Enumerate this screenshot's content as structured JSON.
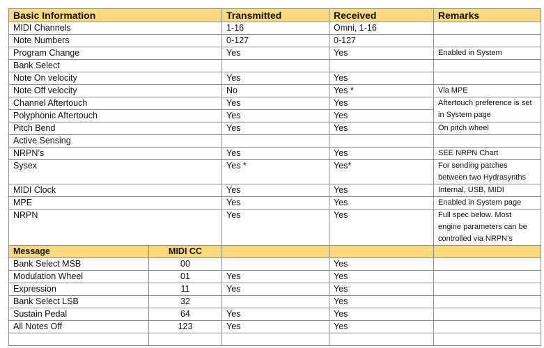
{
  "basic": {
    "headers": [
      "Basic Information",
      "Transmitted",
      "Received",
      "Remarks"
    ],
    "rows": [
      {
        "label": "MIDI Channels",
        "tx": "1-16",
        "rx": "Omni, 1-16",
        "remarks": ""
      },
      {
        "label": "Note Numbers",
        "tx": "0-127",
        "rx": "0-127",
        "remarks": ""
      },
      {
        "label": "Program Change",
        "tx": "Yes",
        "rx": "Yes",
        "remarks": "Enabled in System"
      },
      {
        "label": "Bank Select",
        "tx": "",
        "rx": "",
        "remarks": ""
      },
      {
        "label": "Note On velocity",
        "tx": "Yes",
        "rx": "Yes",
        "remarks": ""
      },
      {
        "label": "Note Off velocity",
        "tx": "No",
        "rx": "Yes *",
        "remarks": "Via MPE"
      },
      {
        "label": "Channel Aftertouch",
        "tx": "Yes",
        "rx": "Yes",
        "remarks": "Aftertouch preference is set in System page"
      },
      {
        "label": "Polyphonic Aftertouch",
        "tx": "Yes",
        "rx": "Yes"
      },
      {
        "label": "Pitch Bend",
        "tx": "Yes",
        "rx": "Yes",
        "remarks": "On pitch wheel"
      },
      {
        "label": "Active Sensing",
        "tx": "",
        "rx": "",
        "remarks": ""
      },
      {
        "label": "NRPN’s",
        "tx": "Yes",
        "rx": "Yes",
        "remarks": "SEE NRPN Chart"
      },
      {
        "label": "Sysex",
        "tx": "Yes *",
        "rx": "Yes*",
        "remarks": "For sending patches between two Hydrasynths"
      },
      {
        "label": "MIDI Clock",
        "tx": "Yes",
        "rx": "Yes",
        "remarks": "Internal, USB, MIDI"
      },
      {
        "label": "MPE",
        "tx": "Yes",
        "rx": "Yes",
        "remarks": "Enabled in System page"
      },
      {
        "label": "NRPN",
        "tx": "Yes",
        "rx": "Yes",
        "remarks": "Full spec below. Most engine parameters can be controlled via NRPN’s"
      }
    ]
  },
  "cc": {
    "headers": [
      "Message",
      "MIDI CC"
    ],
    "rows": [
      {
        "label": "Bank Select MSB",
        "cc": "00",
        "tx": "",
        "rx": "Yes"
      },
      {
        "label": "Modulation Wheel",
        "cc": "01",
        "tx": "Yes",
        "rx": "Yes"
      },
      {
        "label": "Expression",
        "cc": "11",
        "tx": "Yes",
        "rx": "Yes"
      },
      {
        "label": "Bank Select LSB",
        "cc": "32",
        "tx": "",
        "rx": "Yes"
      },
      {
        "label": "Sustain Pedal",
        "cc": "64",
        "tx": "Yes",
        "rx": "Yes"
      },
      {
        "label": "All Notes Off",
        "cc": "123",
        "tx": "Yes",
        "rx": "Yes"
      }
    ]
  },
  "colors": {
    "header_bg": "#fbd97e",
    "border": "#8a8a8a"
  }
}
